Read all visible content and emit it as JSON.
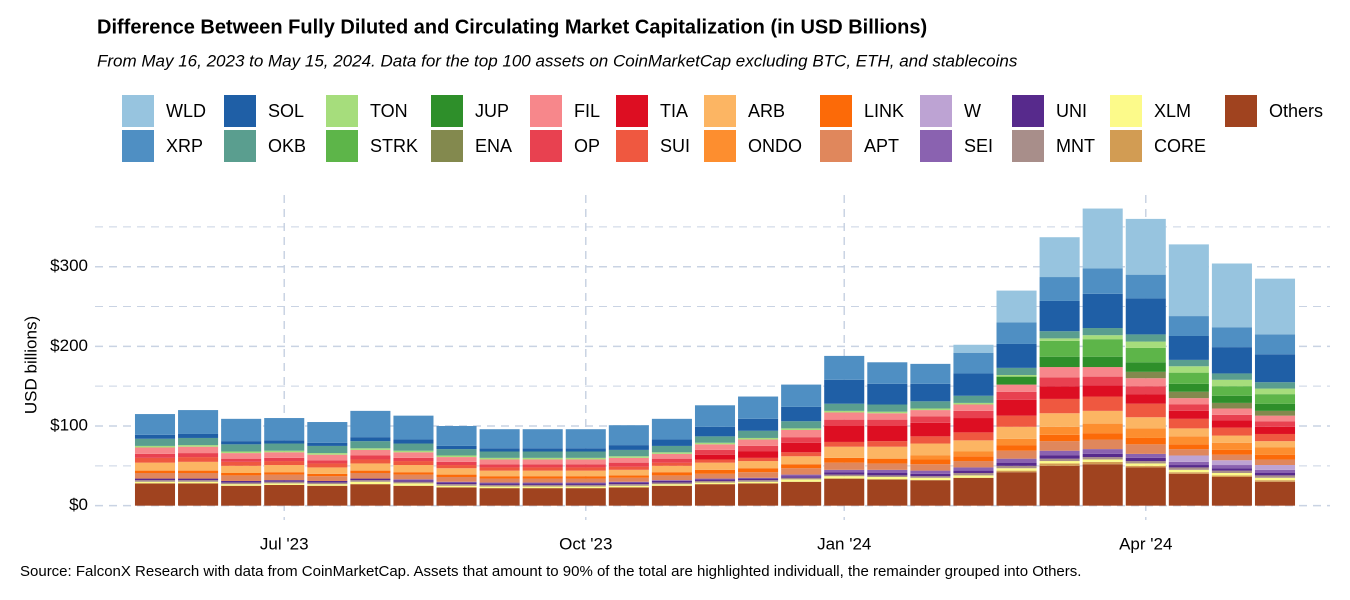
{
  "chart_data": {
    "type": "stacked_bar",
    "title": "Difference Between Fully Diluted and Circulating Market Capitalization (in USD Billions)",
    "subtitle": "From May 16, 2023 to May 15, 2024. Data for the top 100 assets on CoinMarketCap excluding BTC, ETH, and stablecoins",
    "source": "Source: FalconX Research with data from CoinMarketCap. Assets that amount to 90% of the total are highlighted individuall, the remainder grouped into Others.",
    "y_label": "USD billions)",
    "categories": [
      null,
      null,
      null,
      "Jul '23",
      null,
      null,
      null,
      null,
      null,
      null,
      "Oct '23",
      null,
      null,
      null,
      null,
      null,
      "Jan '24",
      null,
      null,
      null,
      null,
      null,
      null,
      "Apr '24",
      null,
      null,
      null
    ],
    "ylim": [
      -18,
      390
    ],
    "yticks": [
      {
        "value": 0,
        "label": "$0"
      },
      {
        "value": 100,
        "label": "$100"
      },
      {
        "value": 200,
        "label": "$200"
      },
      {
        "value": 300,
        "label": "$300"
      }
    ],
    "minor_yticks": [
      50,
      150,
      250,
      350
    ],
    "grid": true,
    "series": [
      {
        "name": "WLD",
        "color": "#97c4df",
        "values": [
          0,
          0,
          0,
          0,
          0,
          0,
          0,
          0,
          0,
          0,
          0,
          0,
          0,
          0,
          0,
          0,
          0,
          0,
          0,
          10,
          40,
          50,
          75,
          70,
          90,
          80,
          70
        ]
      },
      {
        "name": "XRP",
        "color": "#4f8fc3",
        "values": [
          26,
          30,
          28,
          28,
          26,
          33,
          30,
          25,
          24,
          24,
          24,
          25,
          26,
          27,
          28,
          28,
          30,
          27,
          25,
          26,
          27,
          30,
          32,
          30,
          25,
          25,
          25
        ]
      },
      {
        "name": "SOL",
        "color": "#1f5fa6",
        "values": [
          5,
          5,
          4,
          4,
          4,
          5,
          5,
          4,
          4,
          4,
          4,
          6,
          8,
          12,
          15,
          18,
          30,
          26,
          22,
          28,
          30,
          38,
          43,
          45,
          30,
          33,
          35
        ]
      },
      {
        "name": "OKB",
        "color": "#5a9e8f",
        "values": [
          9,
          9,
          9,
          9,
          9,
          9,
          9,
          8,
          8,
          8,
          8,
          8,
          8,
          8,
          9,
          9,
          9,
          9,
          9,
          9,
          9,
          9,
          9,
          9,
          8,
          8,
          8
        ]
      },
      {
        "name": "TON",
        "color": "#a6dd7c",
        "values": [
          2,
          2,
          2,
          2,
          2,
          2,
          2,
          2,
          2,
          2,
          2,
          2,
          2,
          2,
          2,
          2,
          2,
          2,
          2,
          2,
          2,
          3,
          5,
          8,
          8,
          8,
          7
        ]
      },
      {
        "name": "STRK",
        "color": "#5db549",
        "values": [
          0,
          0,
          0,
          0,
          0,
          0,
          0,
          0,
          0,
          0,
          0,
          0,
          0,
          0,
          0,
          0,
          0,
          0,
          0,
          0,
          0,
          20,
          22,
          18,
          14,
          12,
          12
        ]
      },
      {
        "name": "JUP",
        "color": "#2e8f2a",
        "values": [
          0,
          0,
          0,
          0,
          0,
          0,
          0,
          0,
          0,
          0,
          0,
          0,
          0,
          0,
          0,
          0,
          0,
          0,
          0,
          0,
          10,
          13,
          13,
          12,
          10,
          9,
          9
        ]
      },
      {
        "name": "ENA",
        "color": "#83894e",
        "values": [
          0,
          0,
          0,
          0,
          0,
          0,
          0,
          0,
          0,
          0,
          0,
          0,
          0,
          0,
          0,
          0,
          0,
          0,
          0,
          0,
          0,
          0,
          0,
          8,
          8,
          7,
          6
        ]
      },
      {
        "name": "FIL",
        "color": "#f7878b",
        "values": [
          8,
          8,
          7,
          7,
          7,
          7,
          7,
          6,
          6,
          6,
          6,
          6,
          6,
          7,
          8,
          9,
          9,
          8,
          8,
          8,
          9,
          13,
          12,
          10,
          8,
          8,
          7
        ]
      },
      {
        "name": "OP",
        "color": "#e84150",
        "values": [
          5,
          5,
          4,
          4,
          4,
          5,
          4,
          4,
          4,
          4,
          4,
          5,
          5,
          6,
          7,
          7,
          8,
          8,
          8,
          9,
          10,
          11,
          11,
          10,
          8,
          7,
          7
        ]
      },
      {
        "name": "TIA",
        "color": "#dd0e22",
        "values": [
          0,
          0,
          0,
          0,
          0,
          0,
          0,
          0,
          0,
          0,
          0,
          0,
          0,
          6,
          8,
          12,
          20,
          19,
          17,
          18,
          20,
          16,
          14,
          12,
          10,
          9,
          9
        ]
      },
      {
        "name": "SUI",
        "color": "#ef5840",
        "values": [
          6,
          6,
          5,
          5,
          5,
          5,
          5,
          4,
          4,
          4,
          4,
          4,
          4,
          4,
          4,
          5,
          6,
          7,
          9,
          10,
          14,
          18,
          18,
          17,
          12,
          10,
          9
        ]
      },
      {
        "name": "ARB",
        "color": "#fcb563",
        "values": [
          10,
          11,
          9,
          9,
          8,
          9,
          9,
          8,
          7,
          7,
          7,
          7,
          8,
          9,
          9,
          10,
          14,
          15,
          15,
          14,
          15,
          17,
          16,
          14,
          10,
          9,
          8
        ]
      },
      {
        "name": "ONDO",
        "color": "#fd8e2f",
        "values": [
          0,
          0,
          0,
          0,
          0,
          0,
          0,
          0,
          0,
          0,
          0,
          0,
          0,
          0,
          0,
          0,
          0,
          0,
          5,
          6,
          8,
          10,
          12,
          12,
          10,
          9,
          9
        ]
      },
      {
        "name": "LINK",
        "color": "#fc6a08",
        "values": [
          3,
          3,
          3,
          3,
          3,
          3,
          3,
          3,
          3,
          3,
          3,
          3,
          4,
          5,
          5,
          5,
          6,
          6,
          6,
          6,
          7,
          8,
          8,
          8,
          6,
          6,
          6
        ]
      },
      {
        "name": "APT",
        "color": "#e0875c",
        "values": [
          7,
          7,
          7,
          7,
          6,
          7,
          6,
          6,
          5,
          5,
          5,
          5,
          6,
          6,
          7,
          8,
          9,
          8,
          8,
          8,
          10,
          12,
          12,
          12,
          8,
          7,
          7
        ]
      },
      {
        "name": "W",
        "color": "#bda3d3",
        "values": [
          0,
          0,
          0,
          0,
          0,
          0,
          0,
          0,
          0,
          0,
          0,
          0,
          0,
          0,
          0,
          0,
          0,
          0,
          0,
          0,
          0,
          0,
          0,
          0,
          8,
          6,
          6
        ]
      },
      {
        "name": "SEI",
        "color": "#8a62b0",
        "values": [
          0,
          0,
          0,
          0,
          0,
          0,
          1,
          1,
          1,
          1,
          1,
          1,
          1,
          1,
          1,
          2,
          3,
          4,
          4,
          4,
          5,
          6,
          6,
          5,
          4,
          4,
          4
        ]
      },
      {
        "name": "UNI",
        "color": "#572a8c",
        "values": [
          2,
          2,
          2,
          2,
          2,
          2,
          2,
          2,
          2,
          2,
          2,
          2,
          2,
          2,
          2,
          2,
          3,
          3,
          3,
          3,
          4,
          4,
          4,
          4,
          3,
          3,
          3
        ]
      },
      {
        "name": "MNT",
        "color": "#a88e8a",
        "values": [
          2,
          2,
          2,
          2,
          2,
          2,
          2,
          2,
          2,
          2,
          2,
          2,
          2,
          2,
          2,
          2,
          2,
          2,
          2,
          3,
          3,
          3,
          3,
          3,
          3,
          3,
          3
        ]
      },
      {
        "name": "XLM",
        "color": "#fcfa8a",
        "values": [
          2,
          2,
          2,
          2,
          2,
          3,
          3,
          2,
          2,
          2,
          2,
          2,
          2,
          2,
          2,
          3,
          3,
          3,
          3,
          3,
          3,
          3,
          3,
          3,
          3,
          3,
          3
        ]
      },
      {
        "name": "CORE",
        "color": "#d29c53",
        "values": [
          0,
          0,
          0,
          0,
          0,
          0,
          0,
          0,
          0,
          0,
          0,
          0,
          0,
          0,
          0,
          0,
          0,
          0,
          0,
          0,
          2,
          3,
          3,
          2,
          2,
          2,
          2
        ]
      },
      {
        "name": "Others",
        "color": "#a0431f",
        "values": [
          28,
          28,
          25,
          26,
          25,
          27,
          25,
          23,
          22,
          22,
          22,
          23,
          25,
          27,
          28,
          30,
          34,
          33,
          32,
          35,
          42,
          50,
          52,
          48,
          40,
          36,
          30
        ]
      }
    ]
  }
}
